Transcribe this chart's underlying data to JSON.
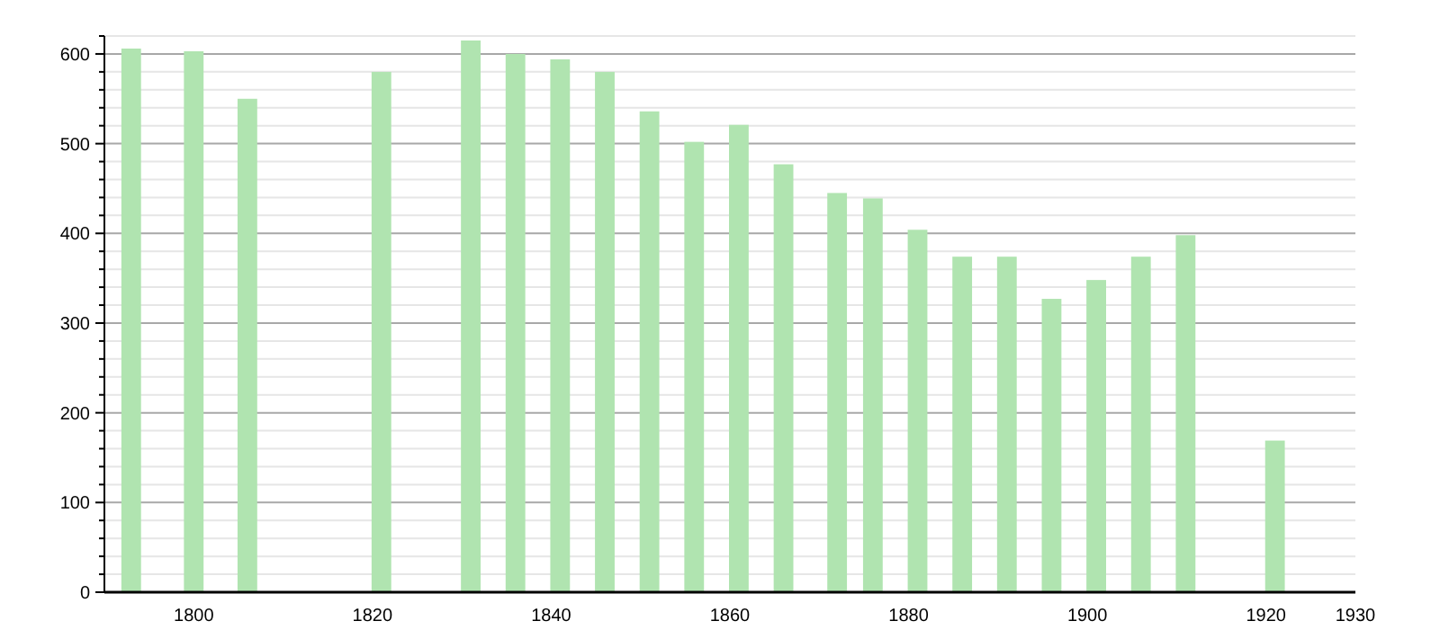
{
  "chart_data": {
    "type": "bar",
    "x": [
      1793,
      1800,
      1806,
      1821,
      1831,
      1836,
      1841,
      1846,
      1851,
      1856,
      1861,
      1866,
      1872,
      1876,
      1881,
      1886,
      1891,
      1896,
      1901,
      1906,
      1911,
      1921
    ],
    "values": [
      606,
      603,
      550,
      580,
      615,
      600,
      594,
      580,
      536,
      502,
      521,
      477,
      445,
      439,
      404,
      374,
      374,
      327,
      348,
      374,
      398,
      169
    ],
    "color": "#b0e4b0",
    "xlim": [
      1790,
      1930
    ],
    "xticks": [
      1800,
      1820,
      1840,
      1860,
      1880,
      1900,
      1920,
      1930
    ],
    "ylim": [
      0,
      620
    ],
    "yticks": [
      0,
      {
        "value": 20,
        "label": null
      },
      {
        "value": 40,
        "label": null
      },
      {
        "value": 60,
        "label": null
      },
      {
        "value": 80,
        "label": null
      },
      100,
      {
        "value": 120,
        "label": null
      },
      {
        "value": 140,
        "label": null
      },
      {
        "value": 160,
        "label": null
      },
      {
        "value": 180,
        "label": null
      },
      200,
      {
        "value": 220,
        "label": null
      },
      {
        "value": 240,
        "label": null
      },
      {
        "value": 260,
        "label": null
      },
      {
        "value": 280,
        "label": null
      },
      300,
      {
        "value": 320,
        "label": null
      },
      {
        "value": 340,
        "label": null
      },
      {
        "value": 360,
        "label": null
      },
      {
        "value": 380,
        "label": null
      },
      400,
      {
        "value": 420,
        "label": null
      },
      {
        "value": 440,
        "label": null
      },
      {
        "value": 460,
        "label": null
      },
      {
        "value": 480,
        "label": null
      },
      500,
      {
        "value": 520,
        "label": null
      },
      {
        "value": 540,
        "label": null
      },
      {
        "value": 560,
        "label": null
      },
      {
        "value": 580,
        "label": null
      },
      600,
      {
        "value": 620,
        "label": null
      }
    ],
    "grid": true
  }
}
